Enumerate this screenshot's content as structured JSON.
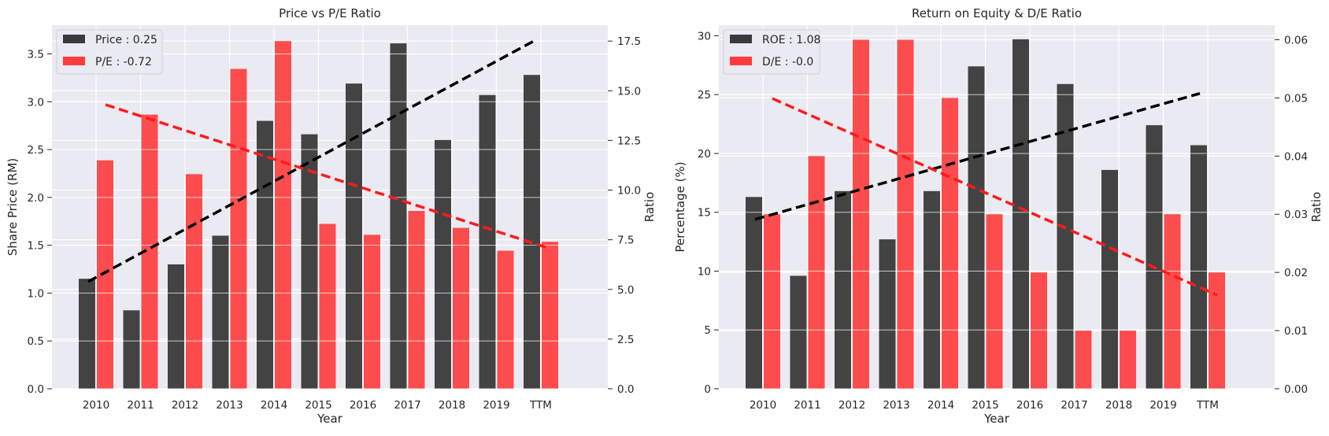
{
  "charts": [
    {
      "title": "Price vs P/E Ratio",
      "xlabel": "Year",
      "ylabel_left": "Share Price (RM)",
      "ylabel_right": "Ratio",
      "legend": [
        "Price : 0.25",
        "P/E : -0.72"
      ],
      "yticks_left": [
        "0.0",
        "0.5",
        "1.0",
        "1.5",
        "2.0",
        "2.5",
        "3.0",
        "3.5"
      ],
      "yticks_right": [
        "0.0",
        "2.5",
        "5.0",
        "7.5",
        "10.0",
        "12.5",
        "15.0",
        "17.5"
      ]
    },
    {
      "title": "Return on Equity & D/E Ratio",
      "xlabel": "Year",
      "ylabel_left": "Percentage (%)",
      "ylabel_right": "Ratio",
      "legend": [
        "ROE : 1.08",
        "D/E : -0.0"
      ],
      "yticks_left": [
        "0",
        "5",
        "10",
        "15",
        "20",
        "25",
        "30"
      ],
      "yticks_right": [
        "0.00",
        "0.01",
        "0.02",
        "0.03",
        "0.04",
        "0.05",
        "0.06"
      ]
    }
  ],
  "colors": {
    "primary": "#3a3a3a",
    "secondary": "#ff3b3b",
    "background": "#eaeaf2",
    "grid": "#ffffff"
  },
  "chart_data": [
    {
      "type": "bar",
      "title": "Price vs P/E Ratio",
      "xlabel": "Year",
      "categories": [
        "2010",
        "2011",
        "2012",
        "2013",
        "2014",
        "2015",
        "2016",
        "2017",
        "2018",
        "2019",
        "TTM"
      ],
      "series": [
        {
          "name": "Price : 0.25",
          "axis": "left",
          "values": [
            1.15,
            0.82,
            1.3,
            1.6,
            2.8,
            2.66,
            3.19,
            3.61,
            2.6,
            3.07,
            3.28
          ]
        },
        {
          "name": "P/E : -0.72",
          "axis": "right",
          "values": [
            11.5,
            13.8,
            10.8,
            16.1,
            17.5,
            8.3,
            7.75,
            8.95,
            8.1,
            6.95,
            7.4
          ]
        }
      ],
      "trendlines": [
        {
          "axis": "left",
          "from": [
            0,
            1.12
          ],
          "to": [
            10,
            3.63
          ]
        },
        {
          "axis": "right",
          "from": [
            0,
            14.3
          ],
          "to": [
            10,
            7.05
          ]
        }
      ],
      "ylim_left": [
        0,
        3.8
      ],
      "ylim_right": [
        0,
        18.3
      ],
      "grid": true,
      "legend_position": "top-left"
    },
    {
      "type": "bar",
      "title": "Return on Equity & D/E Ratio",
      "xlabel": "Year",
      "categories": [
        "2010",
        "2011",
        "2012",
        "2013",
        "2014",
        "2015",
        "2016",
        "2017",
        "2018",
        "2019",
        "TTM"
      ],
      "series": [
        {
          "name": "ROE : 1.08",
          "axis": "left",
          "values": [
            16.3,
            9.6,
            16.8,
            12.7,
            16.8,
            27.4,
            29.7,
            25.9,
            18.6,
            22.4,
            20.7
          ]
        },
        {
          "name": "D/E : -0.0",
          "axis": "right",
          "values": [
            0.03,
            0.04,
            0.06,
            0.06,
            0.05,
            0.03,
            0.02,
            0.01,
            0.01,
            0.03,
            0.02
          ]
        }
      ],
      "trendlines": [
        {
          "axis": "left",
          "from": [
            0,
            14.4
          ],
          "to": [
            10,
            25.1
          ]
        },
        {
          "axis": "right",
          "from": [
            0,
            0.0499
          ],
          "to": [
            10,
            0.0161
          ]
        }
      ],
      "ylim_left": [
        0,
        30.9
      ],
      "ylim_right": [
        0,
        0.0625
      ],
      "grid": true,
      "legend_position": "top-left"
    }
  ]
}
